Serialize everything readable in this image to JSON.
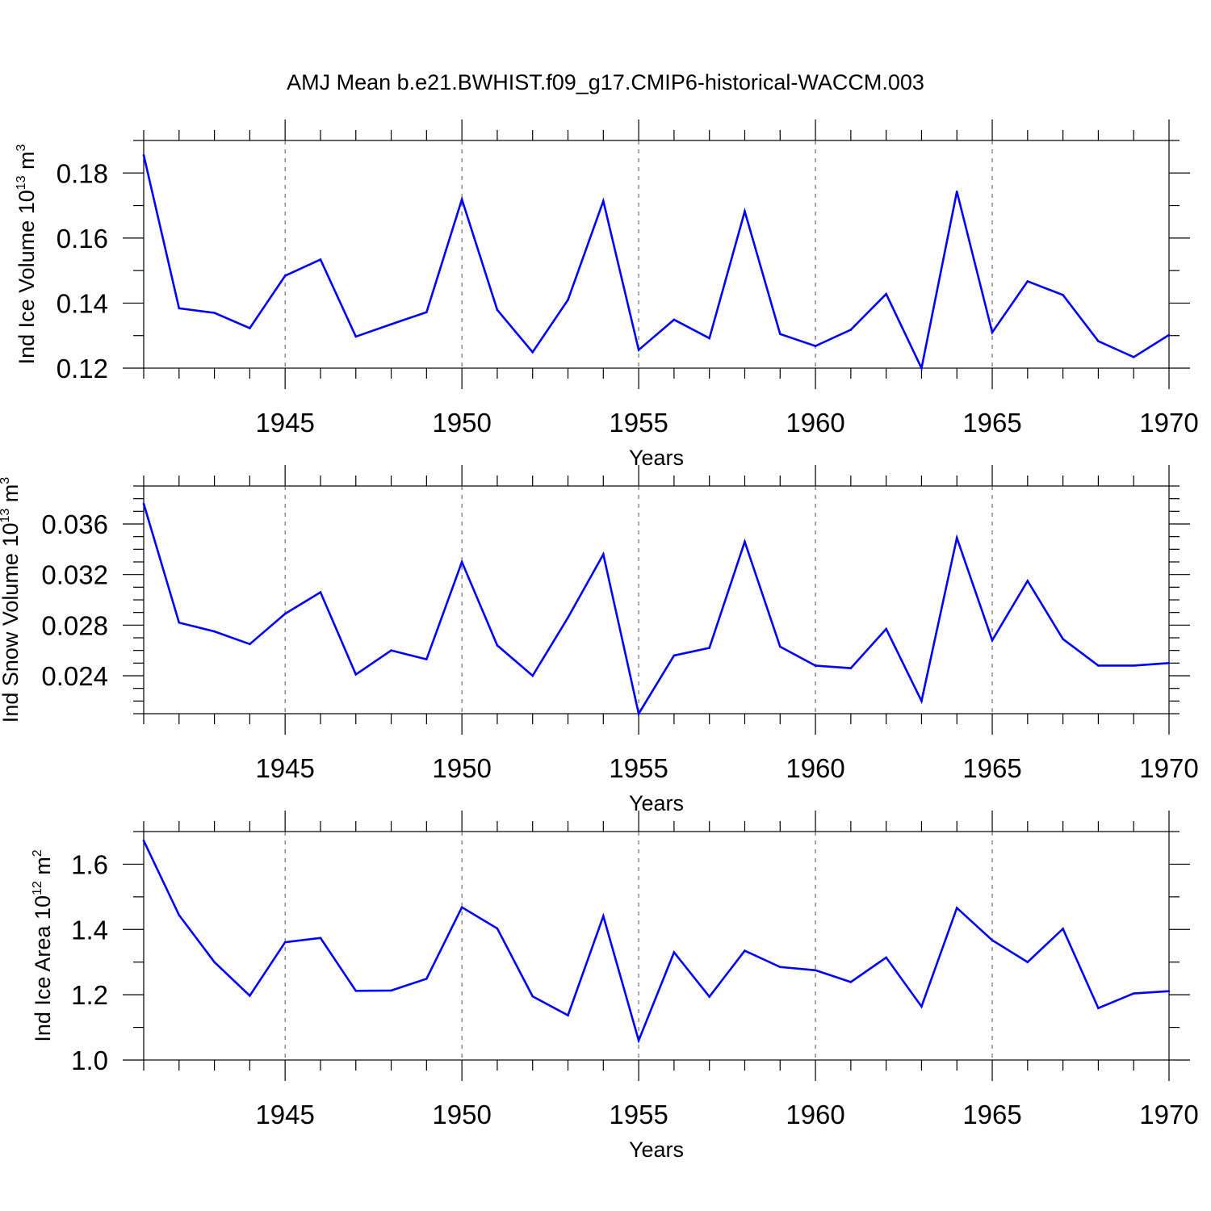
{
  "chart_data": {
    "type": "line",
    "title": "AMJ Mean b.e21.BWHIST.f09_g17.CMIP6-historical-WACCM.003",
    "line_color": "#0000ff",
    "x": [
      1941,
      1942,
      1943,
      1944,
      1945,
      1946,
      1947,
      1948,
      1949,
      1950,
      1951,
      1952,
      1953,
      1954,
      1955,
      1956,
      1957,
      1958,
      1959,
      1960,
      1961,
      1962,
      1963,
      1964,
      1965,
      1966,
      1967,
      1968,
      1969,
      1970
    ],
    "xlim": [
      1941,
      1970
    ],
    "xticks": [
      1945,
      1950,
      1955,
      1960,
      1965,
      1970
    ],
    "xtick_labels": [
      "1945",
      "1950",
      "1955",
      "1960",
      "1965",
      "1970"
    ],
    "panels": [
      {
        "xlabel": "Years",
        "ylabel_main": "Ind Ice Volume 10",
        "ylabel_sup": "13",
        "ylabel_unit": " m",
        "ylabel_unit_sup": "3",
        "ylim": [
          0.12,
          0.19
        ],
        "yticks": [
          0.12,
          0.14,
          0.16,
          0.18
        ],
        "ytick_labels": [
          "0.12",
          "0.14",
          "0.16",
          "0.18"
        ],
        "minor_step": 0.01,
        "values": [
          0.1855,
          0.1384,
          0.137,
          0.1323,
          0.1484,
          0.1534,
          0.1297,
          0.1335,
          0.1372,
          0.1719,
          0.1379,
          0.1249,
          0.141,
          0.1714,
          0.1256,
          0.1349,
          0.1292,
          0.1682,
          0.1305,
          0.1268,
          0.1318,
          0.1428,
          0.12,
          0.1743,
          0.131,
          0.1467,
          0.1425,
          0.1283,
          0.1234,
          0.1302
        ]
      },
      {
        "xlabel": "Years",
        "ylabel_main": "Ind Snow Volume 10",
        "ylabel_sup": "13",
        "ylabel_unit": " m",
        "ylabel_unit_sup": "3",
        "ylim": [
          0.021,
          0.039
        ],
        "yticks": [
          0.024,
          0.028,
          0.032,
          0.036
        ],
        "ytick_labels": [
          "0.024",
          "0.028",
          "0.032",
          "0.036"
        ],
        "minor_step": 0.001,
        "values": [
          0.0376,
          0.0282,
          0.0275,
          0.0265,
          0.0289,
          0.0306,
          0.0241,
          0.026,
          0.0253,
          0.033,
          0.0264,
          0.024,
          0.0286,
          0.0336,
          0.021,
          0.0256,
          0.0262,
          0.0346,
          0.0263,
          0.0248,
          0.0246,
          0.0277,
          0.022,
          0.0349,
          0.0268,
          0.0315,
          0.0269,
          0.0248,
          0.0248,
          0.025
        ]
      },
      {
        "xlabel": "Years",
        "ylabel_main": "Ind Ice Area 10",
        "ylabel_sup": "12",
        "ylabel_unit": " m",
        "ylabel_unit_sup": "2",
        "ylim": [
          1.0,
          1.7
        ],
        "yticks": [
          1.0,
          1.2,
          1.4,
          1.6
        ],
        "ytick_labels": [
          "1.0",
          "1.2",
          "1.4",
          "1.6"
        ],
        "minor_step": 0.1,
        "values": [
          1.672,
          1.444,
          1.3,
          1.197,
          1.361,
          1.374,
          1.212,
          1.213,
          1.249,
          1.468,
          1.403,
          1.195,
          1.137,
          1.441,
          1.06,
          1.33,
          1.194,
          1.335,
          1.285,
          1.275,
          1.239,
          1.314,
          1.164,
          1.466,
          1.367,
          1.3,
          1.402,
          1.159,
          1.204,
          1.211
        ]
      }
    ]
  }
}
